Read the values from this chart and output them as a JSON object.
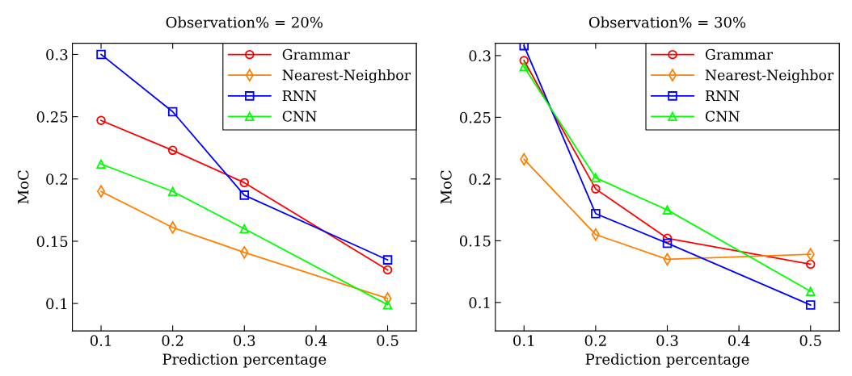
{
  "chart_data": [
    {
      "type": "line",
      "title": "Observation% = 20%",
      "xlabel": "Prediction percentage",
      "ylabel": "MoC",
      "x": [
        0.1,
        0.2,
        0.3,
        0.5
      ],
      "xlim": [
        0.06,
        0.54
      ],
      "ylim": [
        0.078,
        0.309
      ],
      "xticks": [
        0.1,
        0.2,
        0.3,
        0.4,
        0.5
      ],
      "yticks": [
        0.1,
        0.15,
        0.2,
        0.25,
        0.3
      ],
      "legend": "top right",
      "grid": false,
      "series": [
        {
          "name": "Grammar",
          "color": "#ff0000",
          "marker": "circle",
          "values": [
            0.247,
            0.223,
            0.197,
            0.127
          ]
        },
        {
          "name": "Nearest-Neighbor",
          "color": "#ff8000",
          "marker": "diamond",
          "values": [
            0.19,
            0.161,
            0.141,
            0.104
          ]
        },
        {
          "name": "RNN",
          "color": "#0000ff",
          "marker": "square",
          "values": [
            0.3,
            0.254,
            0.187,
            0.135
          ]
        },
        {
          "name": "CNN",
          "color": "#00ff00",
          "marker": "triangle",
          "values": [
            0.212,
            0.19,
            0.16,
            0.099
          ]
        }
      ]
    },
    {
      "type": "line",
      "title": "Observation% = 30%",
      "xlabel": "Prediction percentage",
      "ylabel": "MoC",
      "x": [
        0.1,
        0.2,
        0.3,
        0.5
      ],
      "xlim": [
        0.06,
        0.54
      ],
      "ylim": [
        0.077,
        0.31
      ],
      "xticks": [
        0.1,
        0.2,
        0.3,
        0.4,
        0.5
      ],
      "yticks": [
        0.1,
        0.15,
        0.2,
        0.25,
        0.3
      ],
      "legend": "top right",
      "grid": false,
      "series": [
        {
          "name": "Grammar",
          "color": "#ff0000",
          "marker": "circle",
          "values": [
            0.296,
            0.192,
            0.152,
            0.131
          ]
        },
        {
          "name": "Nearest-Neighbor",
          "color": "#ff8000",
          "marker": "diamond",
          "values": [
            0.216,
            0.155,
            0.135,
            0.139
          ]
        },
        {
          "name": "RNN",
          "color": "#0000ff",
          "marker": "square",
          "values": [
            0.308,
            0.172,
            0.148,
            0.098
          ]
        },
        {
          "name": "CNN",
          "color": "#00ff00",
          "marker": "triangle",
          "values": [
            0.291,
            0.201,
            0.175,
            0.109
          ]
        }
      ]
    }
  ]
}
